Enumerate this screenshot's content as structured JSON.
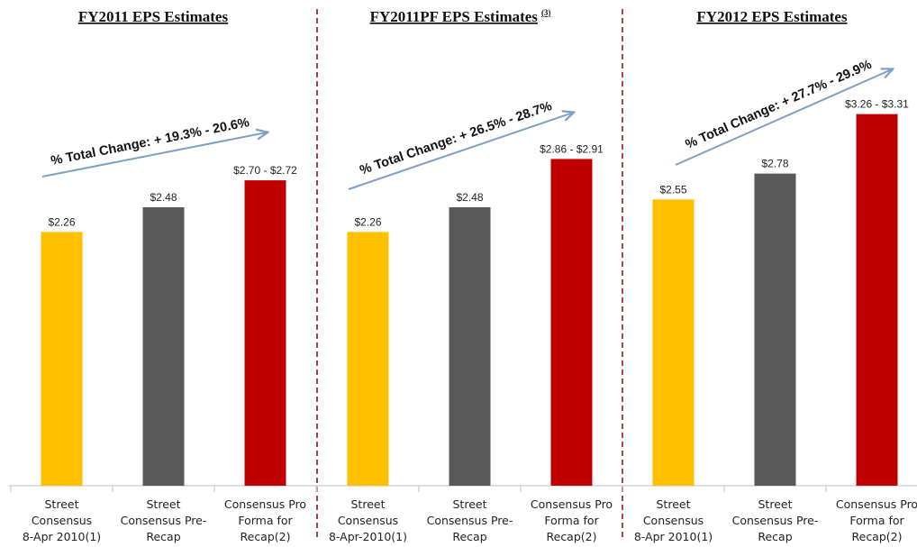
{
  "chart_data": {
    "type": "bar",
    "ylim": [
      0,
      3.5
    ],
    "colors": {
      "street": "#ffc000",
      "pre_recap": "#595959",
      "pro_forma": "#c00000",
      "arrow": "#7f9fc4",
      "divider": "#8b1a1a"
    },
    "panels": [
      {
        "title": "FY2011 EPS Estimates",
        "title_superscript": "",
        "change_label": "% Total Change: + 19.3% - 20.6%",
        "categories": [
          [
            "Street",
            "Consensus",
            "8-Apr 2010(1)"
          ],
          [
            "Street",
            "Consensus Pre-",
            "Recap"
          ],
          [
            "Consensus Pro",
            "Forma for",
            "Recap(2)"
          ]
        ],
        "values": [
          2.26,
          2.48,
          2.72
        ],
        "value_labels": [
          "$2.26",
          "$2.48",
          "$2.70 - $2.72"
        ],
        "color_keys": [
          "street",
          "pre_recap",
          "pro_forma"
        ]
      },
      {
        "title": "FY2011PF EPS Estimates",
        "title_superscript": "(3)",
        "change_label": "% Total Change: + 26.5% - 28.7%",
        "categories": [
          [
            "Street",
            "Consensus",
            "8-Apr-2010(1)"
          ],
          [
            "Street",
            "Consensus Pre-",
            "Recap"
          ],
          [
            "Consensus Pro",
            "Forma for",
            "Recap(2)"
          ]
        ],
        "values": [
          2.26,
          2.48,
          2.91
        ],
        "value_labels": [
          "$2.26",
          "$2.48",
          "$2.86 - $2.91"
        ],
        "color_keys": [
          "street",
          "pre_recap",
          "pro_forma"
        ]
      },
      {
        "title": "FY2012 EPS Estimates",
        "title_superscript": "",
        "change_label": "% Total Change: + 27.7% - 29.9%",
        "categories": [
          [
            "Street",
            "Consensus",
            "8-Apr 2010(1)"
          ],
          [
            "Street",
            "Consensus Pre-",
            "Recap"
          ],
          [
            "Consensus Pro",
            "Forma for",
            "Recap(2)"
          ]
        ],
        "values": [
          2.55,
          2.78,
          3.31
        ],
        "value_labels": [
          "$2.55",
          "$2.78",
          "$3.26 - $3.31"
        ],
        "color_keys": [
          "street",
          "pre_recap",
          "pro_forma"
        ]
      }
    ]
  }
}
